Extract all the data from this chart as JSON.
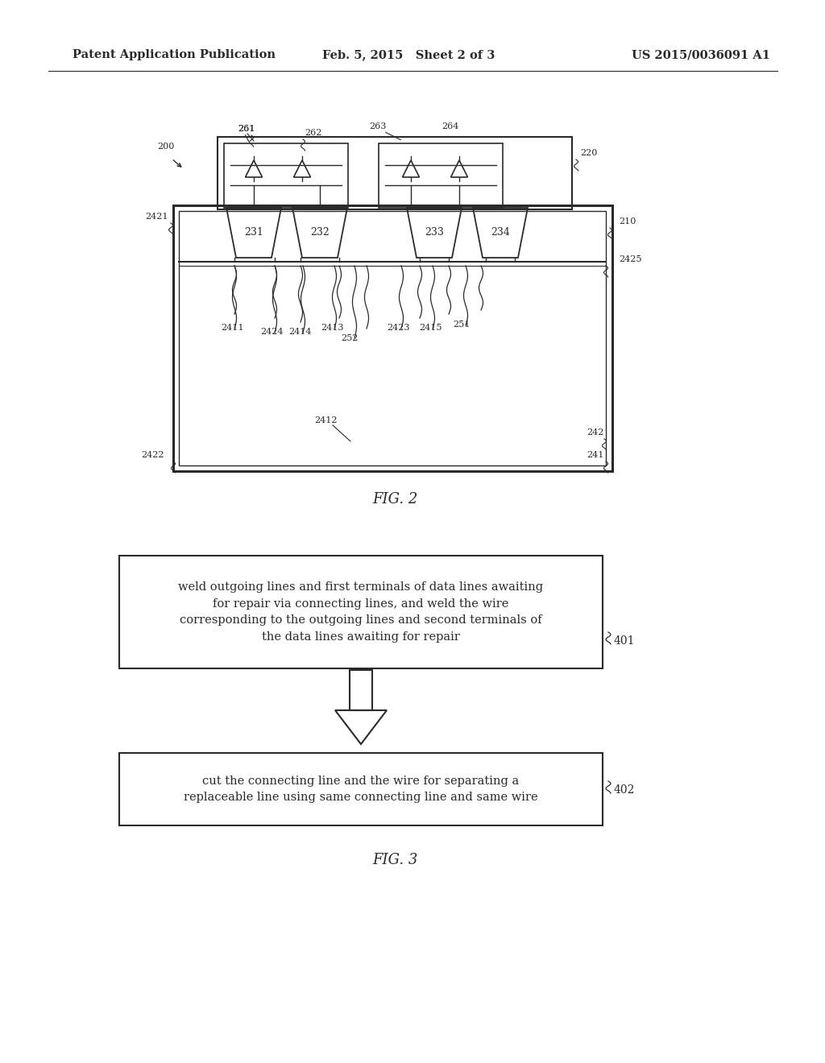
{
  "bg_color": "#ffffff",
  "header_left": "Patent Application Publication",
  "header_mid": "Feb. 5, 2015   Sheet 2 of 3",
  "header_right": "US 2015/0036091 A1",
  "fig2_label": "FIG. 2",
  "fig3_label": "FIG. 3",
  "box1_text": "weld outgoing lines and first terminals of data lines awaiting\nfor repair via connecting lines, and weld the wire\ncorresponding to the outgoing lines and second terminals of\nthe data lines awaiting for repair",
  "box1_ref": "401",
  "box2_text": "cut the connecting line and the wire for separating a\nreplaceable line using same connecting line and same wire",
  "box2_ref": "402"
}
